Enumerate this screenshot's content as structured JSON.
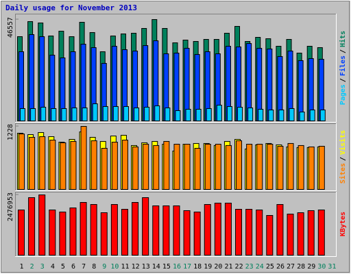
{
  "chart_data": [
    {
      "type": "bar",
      "title": "Daily usage for November 2013",
      "legend_separator": "/",
      "ylim": [
        0,
        46557
      ],
      "yticks": [
        46557
      ],
      "series": [
        {
          "name": "Hits",
          "color": "#00805c",
          "values": [
            38696,
            45617,
            44988,
            39010,
            41213,
            38696,
            45302,
            40583,
            31775,
            39010,
            39954,
            40269,
            42471,
            46557,
            42471,
            35864,
            37123,
            36494,
            37437,
            37437,
            40269,
            43415,
            36494,
            38381,
            37752,
            34291,
            37437,
            31145,
            34291,
            33662,
            null
          ]
        },
        {
          "name": "Files",
          "color": "#0040ff",
          "values": [
            31775,
            39640,
            38696,
            30202,
            28943,
            31775,
            35235,
            33662,
            26426,
            34291,
            32718,
            32089,
            34606,
            36808,
            30831,
            31145,
            33348,
            30516,
            31775,
            30831,
            34291,
            33977,
            35550,
            33348,
            33033,
            29572,
            32089,
            27685,
            28629,
            28314,
            null
          ]
        },
        {
          "name": "Pages",
          "color": "#00c8ff",
          "values": [
            5663,
            5663,
            6292,
            5663,
            5663,
            5977,
            5977,
            7865,
            6607,
            6607,
            6607,
            5977,
            6292,
            6921,
            5977,
            4719,
            5348,
            5348,
            5663,
            7236,
            6607,
            6292,
            5977,
            5348,
            5034,
            5034,
            5663,
            4090,
            5034,
            5034,
            null
          ]
        }
      ]
    },
    {
      "type": "bar",
      "legend_separator": "/",
      "ylim": [
        0,
        1228
      ],
      "yticks": [
        1228
      ],
      "series": [
        {
          "name": "Visits",
          "color": "#ffff00",
          "values": [
            1095,
            1068,
            1108,
            1028,
            921,
            975,
            1121,
            1015,
            935,
            1041,
            1055,
            855,
            908,
            935,
            881,
            748,
            881,
            895,
            895,
            855,
            935,
            975,
            788,
            868,
            895,
            868,
            828,
            815,
            815,
            828,
            null
          ]
        },
        {
          "name": "Sites",
          "color": "#ff8000",
          "values": [
            1081,
            1015,
            1028,
            961,
            908,
            935,
            1228,
            948,
            801,
            921,
            961,
            828,
            881,
            855,
            935,
            881,
            881,
            801,
            881,
            881,
            855,
            948,
            881,
            881,
            881,
            841,
            895,
            855,
            828,
            841,
            null
          ]
        }
      ]
    },
    {
      "type": "bar",
      "ylim": [
        0,
        2476953
      ],
      "yticks": [
        2476953
      ],
      "categories": [
        "1",
        "2",
        "3",
        "4",
        "5",
        "6",
        "7",
        "8",
        "9",
        "10",
        "11",
        "12",
        "13",
        "14",
        "15",
        "16",
        "17",
        "18",
        "19",
        "20",
        "21",
        "22",
        "23",
        "24",
        "25",
        "26",
        "27",
        "28",
        "29",
        "30",
        "31"
      ],
      "category_colors": [
        "#000000",
        "#00805c",
        "#00805c",
        "#000000",
        "#000000",
        "#000000",
        "#000000",
        "#000000",
        "#00805c",
        "#00805c",
        "#000000",
        "#000000",
        "#000000",
        "#000000",
        "#000000",
        "#00805c",
        "#00805c",
        "#000000",
        "#000000",
        "#000000",
        "#000000",
        "#000000",
        "#00805c",
        "#00805c",
        "#000000",
        "#000000",
        "#000000",
        "#000000",
        "#000000",
        "#00805c",
        "#00805c"
      ],
      "series": [
        {
          "name": "KBytes",
          "color": "#ff0000",
          "values": [
            1857702,
            2364348,
            2476953,
            1857702,
            1773261,
            1942143,
            2167319,
            2082878,
            1745114,
            2082878,
            1885849,
            2167319,
            2364348,
            2026584,
            2026584,
            2026584,
            1829555,
            1773261,
            2082878,
            2139172,
            2139172,
            1885849,
            1885849,
            1857702,
            1632526,
            2082878,
            1688820,
            1745114,
            1829555,
            1857702,
            null
          ]
        }
      ]
    }
  ]
}
